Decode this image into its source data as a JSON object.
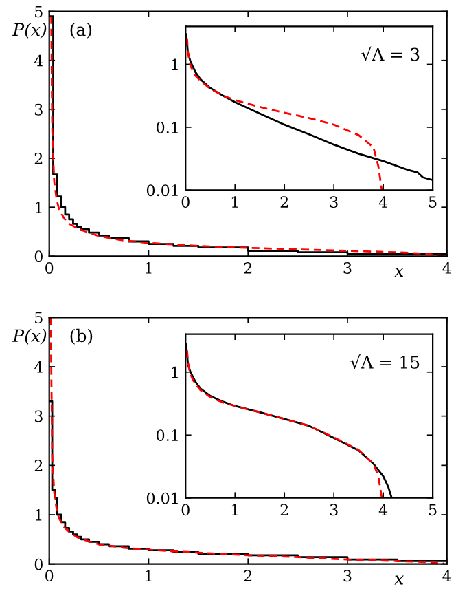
{
  "chart_data": [
    {
      "type": "step",
      "ylabel": "P(x)",
      "xlabel": "x",
      "annotations": [
        "(a)"
      ],
      "xlim": [
        0,
        4
      ],
      "ylim": [
        0,
        5
      ],
      "xticks": [
        0,
        1,
        2,
        3,
        4
      ],
      "yticks": [
        0,
        1,
        2,
        3,
        4,
        5
      ],
      "series": [
        {
          "color": "#000000",
          "line_style": "solid",
          "x": [
            0,
            0.04,
            0.08,
            0.12,
            0.16,
            0.2,
            0.24,
            0.28,
            0.32,
            0.4,
            0.5,
            0.6,
            0.8,
            1.0,
            1.25,
            1.5,
            2.0,
            2.5,
            3.0,
            3.5,
            4.0
          ],
          "values": [
            4.9,
            1.67,
            1.22,
            1.0,
            0.85,
            0.75,
            0.66,
            0.6,
            0.55,
            0.48,
            0.42,
            0.37,
            0.3,
            0.25,
            0.21,
            0.18,
            0.11,
            0.08,
            0.05,
            0.04,
            0.04
          ]
        },
        {
          "type": "line",
          "color": "#ff0000",
          "line_style": "dashed",
          "x": [
            0.02,
            0.03,
            0.05,
            0.075,
            0.1,
            0.15,
            0.2,
            0.3,
            0.5,
            0.75,
            1,
            1.5,
            2,
            2.5,
            3,
            3.5,
            3.8,
            3.9,
            3.97
          ],
          "values": [
            4.9,
            2.6,
            1.52,
            1.15,
            0.95,
            0.77,
            0.66,
            0.55,
            0.41,
            0.32,
            0.27,
            0.21,
            0.17,
            0.14,
            0.11,
            0.08,
            0.05,
            0.02,
            0.01
          ]
        }
      ]
    },
    {
      "type": "line",
      "log": "y",
      "annotations": [
        "√Λ = 3"
      ],
      "xlim": [
        0,
        5
      ],
      "ylim": [
        0.01,
        4
      ],
      "xticks": [
        0,
        1,
        2,
        3,
        4,
        5
      ],
      "yticks": [
        0.01,
        0.1,
        1
      ],
      "series": [
        {
          "color": "#000000",
          "line_style": "solid",
          "x": [
            0.01,
            0.05,
            0.1,
            0.2,
            0.3,
            0.5,
            0.75,
            1,
            1.5,
            2,
            2.5,
            3,
            3.5,
            4,
            4.5,
            4.7,
            4.8,
            5
          ],
          "values": [
            3,
            1.5,
            1.1,
            0.75,
            0.58,
            0.42,
            0.32,
            0.25,
            0.165,
            0.11,
            0.077,
            0.053,
            0.038,
            0.029,
            0.021,
            0.019,
            0.016,
            0.0145
          ]
        },
        {
          "color": "#ff0000",
          "line_style": "dashed",
          "x": [
            0.03,
            0.05,
            0.075,
            0.1,
            0.15,
            0.2,
            0.3,
            0.5,
            0.75,
            1,
            1.5,
            2,
            2.5,
            3,
            3.5,
            3.8,
            3.9,
            3.97
          ],
          "values": [
            2.6,
            1.52,
            1.15,
            0.95,
            0.77,
            0.66,
            0.55,
            0.41,
            0.32,
            0.27,
            0.21,
            0.17,
            0.14,
            0.11,
            0.075,
            0.048,
            0.024,
            0.01
          ]
        }
      ]
    },
    {
      "type": "step",
      "ylabel": "P(x)",
      "xlabel": "x",
      "annotations": [
        "(b)"
      ],
      "xlim": [
        0,
        4
      ],
      "ylim": [
        0,
        5
      ],
      "xticks": [
        0,
        1,
        2,
        3,
        4
      ],
      "yticks": [
        0,
        1,
        2,
        3,
        4,
        5
      ],
      "series": [
        {
          "color": "#000000",
          "line_style": "solid",
          "x": [
            0,
            0.03,
            0.06,
            0.08,
            0.12,
            0.16,
            0.2,
            0.24,
            0.28,
            0.32,
            0.4,
            0.5,
            0.6,
            0.8,
            1.0,
            1.25,
            1.5,
            2.0,
            2.5,
            3.0,
            3.5,
            4.0
          ],
          "values": [
            3.3,
            1.5,
            1.33,
            1.0,
            0.85,
            0.73,
            0.66,
            0.6,
            0.55,
            0.5,
            0.45,
            0.4,
            0.36,
            0.31,
            0.28,
            0.24,
            0.21,
            0.18,
            0.14,
            0.09,
            0.06,
            0.06
          ]
        },
        {
          "type": "line",
          "color": "#ff0000",
          "line_style": "dashed",
          "x": [
            0.015,
            0.03,
            0.05,
            0.075,
            0.1,
            0.15,
            0.2,
            0.3,
            0.5,
            0.75,
            1,
            1.5,
            2,
            2.5,
            3,
            3.5,
            3.8,
            3.9,
            3.97
          ],
          "values": [
            5,
            2.2,
            1.45,
            1.1,
            0.92,
            0.75,
            0.65,
            0.52,
            0.4,
            0.33,
            0.29,
            0.23,
            0.18,
            0.14,
            0.09,
            0.06,
            0.04,
            0.02,
            0.01
          ]
        }
      ]
    },
    {
      "type": "line",
      "log": "y",
      "annotations": [
        "√Λ = 15"
      ],
      "xlim": [
        0,
        5
      ],
      "ylim": [
        0.01,
        4
      ],
      "xticks": [
        0,
        1,
        2,
        3,
        4,
        5
      ],
      "yticks": [
        0.01,
        0.1,
        1
      ],
      "series": [
        {
          "color": "#000000",
          "line_style": "solid",
          "x": [
            0.01,
            0.05,
            0.1,
            0.2,
            0.3,
            0.5,
            0.75,
            1,
            1.5,
            2,
            2.5,
            3,
            3.5,
            3.8,
            4.0,
            4.1,
            4.17
          ],
          "values": [
            2.8,
            1.3,
            1.0,
            0.7,
            0.55,
            0.42,
            0.34,
            0.29,
            0.23,
            0.18,
            0.14,
            0.09,
            0.057,
            0.035,
            0.022,
            0.015,
            0.01
          ]
        },
        {
          "color": "#ff0000",
          "line_style": "dashed",
          "x": [
            0.03,
            0.05,
            0.075,
            0.1,
            0.15,
            0.2,
            0.3,
            0.5,
            0.75,
            1,
            1.5,
            2,
            2.5,
            3,
            3.5,
            3.8,
            3.9,
            3.97
          ],
          "values": [
            2.2,
            1.45,
            1.1,
            0.92,
            0.75,
            0.65,
            0.52,
            0.4,
            0.33,
            0.29,
            0.23,
            0.18,
            0.14,
            0.092,
            0.058,
            0.035,
            0.022,
            0.01
          ]
        }
      ]
    }
  ]
}
